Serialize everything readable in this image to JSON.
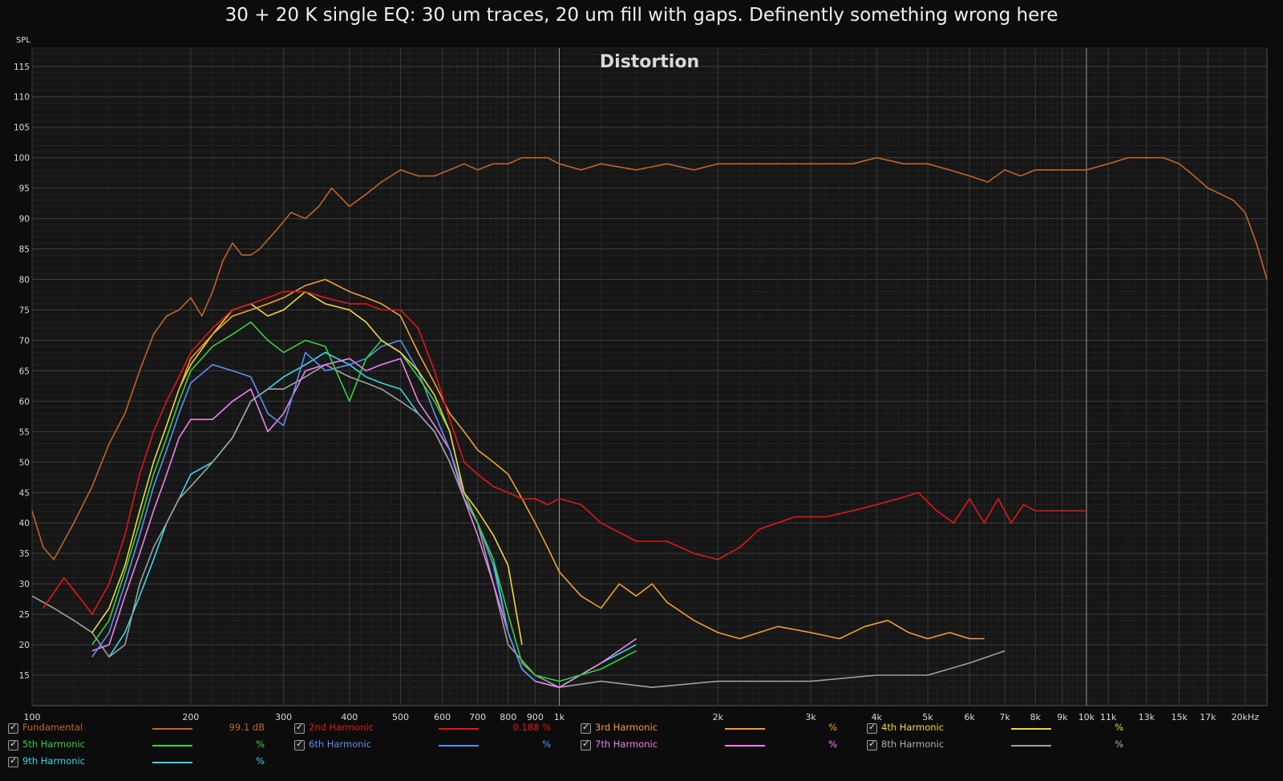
{
  "title": "30 + 20 K single EQ: 30 um traces, 20 um fill with gaps. Definently something wrong here",
  "chart_data": {
    "type": "line",
    "title": "Distortion",
    "ylabel": "SPL",
    "xscale": "log",
    "xlim": [
      100,
      22000
    ],
    "ylim": [
      10,
      118
    ],
    "yticks": [
      15,
      20,
      25,
      30,
      35,
      40,
      45,
      50,
      55,
      60,
      65,
      70,
      75,
      80,
      85,
      90,
      95,
      100,
      105,
      110,
      115
    ],
    "xticks": [
      {
        "v": 100,
        "label": "100"
      },
      {
        "v": 200,
        "label": "200"
      },
      {
        "v": 300,
        "label": "300"
      },
      {
        "v": 400,
        "label": "400"
      },
      {
        "v": 500,
        "label": "500"
      },
      {
        "v": 600,
        "label": "600"
      },
      {
        "v": 700,
        "label": "700"
      },
      {
        "v": 800,
        "label": "800"
      },
      {
        "v": 900,
        "label": "900"
      },
      {
        "v": 1000,
        "label": "1k"
      },
      {
        "v": 2000,
        "label": "2k"
      },
      {
        "v": 3000,
        "label": "3k"
      },
      {
        "v": 4000,
        "label": "4k"
      },
      {
        "v": 5000,
        "label": "5k"
      },
      {
        "v": 6000,
        "label": "6k"
      },
      {
        "v": 7000,
        "label": "7k"
      },
      {
        "v": 8000,
        "label": "8k"
      },
      {
        "v": 9000,
        "label": "9k"
      },
      {
        "v": 10000,
        "label": "10k"
      },
      {
        "v": 11000,
        "label": "11k"
      },
      {
        "v": 13000,
        "label": "13k"
      },
      {
        "v": 15000,
        "label": "15k"
      },
      {
        "v": 17000,
        "label": "17k"
      },
      {
        "v": 20000,
        "label": "20kHz"
      }
    ],
    "grid": true,
    "series": [
      {
        "name": "Fundamental",
        "color": "#c0642a",
        "value": "99.1 dB",
        "x": [
          100,
          105,
          110,
          120,
          130,
          140,
          150,
          160,
          170,
          180,
          190,
          200,
          210,
          220,
          230,
          240,
          250,
          260,
          270,
          290,
          310,
          330,
          350,
          370,
          400,
          430,
          460,
          500,
          540,
          580,
          620,
          660,
          700,
          750,
          800,
          850,
          900,
          950,
          1000,
          1100,
          1200,
          1400,
          1600,
          1800,
          2000,
          2400,
          2800,
          3200,
          3600,
          4000,
          4500,
          5000,
          5500,
          6000,
          6500,
          7000,
          7500,
          8000,
          9000,
          10000,
          11000,
          12000,
          13000,
          14000,
          15000,
          16000,
          17000,
          18000,
          19000,
          20000,
          21000,
          22000
        ],
        "y": [
          42,
          36,
          34,
          40,
          46,
          53,
          58,
          65,
          71,
          74,
          75,
          77,
          74,
          78,
          83,
          86,
          84,
          84,
          85,
          88,
          91,
          90,
          92,
          95,
          92,
          94,
          96,
          98,
          97,
          97,
          98,
          99,
          98,
          99,
          99,
          100,
          100,
          100,
          99,
          98,
          99,
          98,
          99,
          98,
          99,
          99,
          99,
          99,
          99,
          100,
          99,
          99,
          98,
          97,
          96,
          98,
          97,
          98,
          98,
          98,
          99,
          100,
          100,
          100,
          99,
          97,
          95,
          94,
          93,
          91,
          86,
          80
        ]
      },
      {
        "name": "2nd Harmonic",
        "color": "#e01818",
        "value": "0.188 %",
        "x": [
          105,
          115,
          125,
          130,
          140,
          150,
          160,
          170,
          180,
          190,
          200,
          220,
          240,
          260,
          280,
          300,
          330,
          360,
          400,
          430,
          460,
          500,
          540,
          580,
          620,
          660,
          700,
          750,
          800,
          850,
          900,
          950,
          1000,
          1100,
          1200,
          1400,
          1600,
          1800,
          2000,
          2200,
          2400,
          2800,
          3200,
          3600,
          4000,
          4400,
          4800,
          5200,
          5600,
          6000,
          6400,
          6800,
          7200,
          7600,
          8000,
          9000,
          10000
        ],
        "y": [
          26,
          31,
          27,
          25,
          30,
          38,
          48,
          55,
          60,
          64,
          68,
          72,
          75,
          76,
          77,
          78,
          78,
          77,
          76,
          76,
          75,
          75,
          72,
          65,
          57,
          50,
          48,
          46,
          45,
          44,
          44,
          43,
          44,
          43,
          40,
          37,
          37,
          35,
          34,
          36,
          39,
          41,
          41,
          42,
          43,
          44,
          45,
          42,
          40,
          44,
          40,
          44,
          40,
          43,
          42,
          42,
          42
        ]
      },
      {
        "name": "3rd Harmonic",
        "color": "#f0a030",
        "value": "%",
        "x": [
          190,
          200,
          220,
          240,
          260,
          280,
          300,
          330,
          360,
          400,
          430,
          460,
          500,
          540,
          580,
          620,
          660,
          700,
          750,
          800,
          850,
          900,
          950,
          1000,
          1100,
          1200,
          1300,
          1400,
          1500,
          1600,
          1800,
          2000,
          2200,
          2600,
          3000,
          3400,
          3800,
          4200,
          4600,
          5000,
          5500,
          6000,
          6400
        ],
        "y": [
          62,
          67,
          71,
          74,
          75,
          76,
          77,
          79,
          80,
          78,
          77,
          76,
          74,
          68,
          63,
          58,
          55,
          52,
          50,
          48,
          44,
          40,
          36,
          32,
          28,
          26,
          30,
          28,
          30,
          27,
          24,
          22,
          21,
          23,
          22,
          21,
          23,
          24,
          22,
          21,
          22,
          21,
          21
        ]
      },
      {
        "name": "4th Harmonic",
        "color": "#f0d838",
        "value": "%",
        "x": [
          130,
          140,
          150,
          160,
          170,
          180,
          190,
          200,
          220,
          240,
          260,
          280,
          300,
          330,
          360,
          400,
          430,
          460,
          500,
          540,
          580,
          620,
          660,
          700,
          750,
          800,
          850
        ],
        "y": [
          22,
          26,
          33,
          42,
          50,
          56,
          62,
          66,
          71,
          75,
          76,
          74,
          75,
          78,
          76,
          75,
          73,
          70,
          68,
          65,
          61,
          55,
          45,
          42,
          38,
          33,
          20
        ]
      },
      {
        "name": "5th Harmonic",
        "color": "#38d040",
        "value": "%",
        "x": [
          130,
          140,
          150,
          160,
          170,
          180,
          190,
          200,
          220,
          240,
          260,
          280,
          300,
          330,
          360,
          400,
          430,
          460,
          500,
          540,
          580,
          620,
          660,
          700,
          750,
          800,
          850,
          900,
          1000,
          1200,
          1400
        ],
        "y": [
          20,
          24,
          32,
          40,
          48,
          54,
          60,
          65,
          69,
          71,
          73,
          70,
          68,
          70,
          69,
          60,
          67,
          70,
          68,
          64,
          60,
          55,
          45,
          40,
          34,
          25,
          17,
          15,
          14,
          16,
          19
        ]
      },
      {
        "name": "6th Harmonic",
        "color": "#5c90f0",
        "value": "%",
        "x": [
          130,
          140,
          150,
          160,
          170,
          180,
          190,
          200,
          220,
          240,
          260,
          280,
          300,
          330,
          360,
          400,
          430,
          460,
          500,
          540,
          580,
          620,
          660,
          700,
          750,
          800,
          850,
          900
        ],
        "y": [
          18,
          22,
          30,
          38,
          46,
          52,
          58,
          63,
          66,
          65,
          64,
          58,
          56,
          68,
          65,
          66,
          67,
          69,
          70,
          65,
          58,
          52,
          45,
          40,
          33,
          22,
          16,
          14
        ]
      },
      {
        "name": "7th Harmonic",
        "color": "#f080f0",
        "value": "%",
        "x": [
          130,
          140,
          150,
          160,
          170,
          180,
          190,
          200,
          220,
          240,
          260,
          280,
          300,
          330,
          360,
          400,
          430,
          460,
          500,
          540,
          580,
          620,
          660,
          700,
          750,
          800,
          850,
          900,
          1000,
          1200,
          1400
        ],
        "y": [
          19,
          20,
          28,
          35,
          42,
          48,
          54,
          57,
          57,
          60,
          62,
          55,
          58,
          65,
          66,
          67,
          65,
          66,
          67,
          60,
          56,
          52,
          44,
          38,
          30,
          22,
          16,
          14,
          13,
          17,
          21
        ]
      },
      {
        "name": "8th Harmonic",
        "color": "#a0a0a0",
        "value": "%",
        "x": [
          100,
          110,
          120,
          130,
          140,
          150,
          160,
          170,
          180,
          190,
          200,
          220,
          240,
          260,
          280,
          300,
          330,
          360,
          400,
          430,
          460,
          500,
          540,
          580,
          620,
          660,
          700,
          750,
          800,
          900,
          1000,
          1200,
          1500,
          2000,
          3000,
          4000,
          5000,
          6000,
          7000
        ],
        "y": [
          28,
          26,
          24,
          22,
          18,
          20,
          30,
          36,
          40,
          44,
          46,
          50,
          54,
          60,
          62,
          62,
          64,
          66,
          64,
          63,
          62,
          60,
          58,
          55,
          50,
          44,
          40,
          30,
          20,
          15,
          13,
          14,
          13,
          14,
          14,
          15,
          15,
          17,
          19
        ]
      },
      {
        "name": "9th Harmonic",
        "color": "#38d8e8",
        "value": "%",
        "x": [
          140,
          150,
          160,
          170,
          180,
          190,
          200,
          220,
          240,
          260,
          280,
          300,
          330,
          360,
          400,
          430,
          460,
          500,
          540,
          580,
          620,
          660,
          700,
          750,
          800,
          850,
          900,
          1000,
          1200,
          1400
        ],
        "y": [
          18,
          22,
          28,
          34,
          40,
          44,
          48,
          50,
          54,
          60,
          62,
          64,
          66,
          68,
          66,
          64,
          63,
          62,
          58,
          55,
          50,
          44,
          40,
          34,
          22,
          16,
          14,
          13,
          17,
          20
        ]
      }
    ]
  },
  "legend": [
    {
      "key": "fundamental",
      "name": "Fundamental",
      "value": "99.1 dB"
    },
    {
      "key": "h2",
      "name": "2nd Harmonic",
      "value": "0.188 %"
    },
    {
      "key": "h3",
      "name": "3rd Harmonic",
      "value": "%"
    },
    {
      "key": "h4",
      "name": "4th Harmonic",
      "value": "%"
    },
    {
      "key": "h5",
      "name": "5th Harmonic",
      "value": "%"
    },
    {
      "key": "h6",
      "name": "6th Harmonic",
      "value": "%"
    },
    {
      "key": "h7",
      "name": "7th Harmonic",
      "value": "%"
    },
    {
      "key": "h8",
      "name": "8th Harmonic",
      "value": "%"
    },
    {
      "key": "h9",
      "name": "9th Harmonic",
      "value": "%"
    }
  ]
}
